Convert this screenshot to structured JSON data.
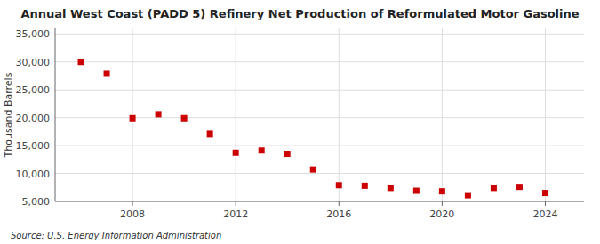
{
  "chart_data": {
    "type": "scatter",
    "title": "Annual West Coast (PADD 5) Refinery Net Production of Reformulated Motor Gasoline",
    "y_label": "Thousand Barrels",
    "annotations": [
      "Source: U.S. Energy Information Administration"
    ],
    "x": [
      2006,
      2007,
      2008,
      2009,
      2010,
      2011,
      2012,
      2013,
      2014,
      2015,
      2016,
      2017,
      2018,
      2019,
      2020,
      2021,
      2022,
      2023,
      2024
    ],
    "values": [
      30000,
      27900,
      19900,
      20600,
      19900,
      17100,
      13700,
      14100,
      13500,
      10700,
      7900,
      7800,
      7400,
      6900,
      6800,
      6100,
      7400,
      7600,
      6500
    ],
    "color": "#cc0000",
    "marker": "square",
    "xlim": [
      2005,
      2025.5
    ],
    "xticks": [
      2008,
      2012,
      2016,
      2020,
      2024
    ],
    "ylim": [
      5000,
      36000
    ],
    "yticks": [
      {
        "value": 5000,
        "label": "5,000"
      },
      {
        "value": 10000,
        "label": "10,000"
      },
      {
        "value": 15000,
        "label": "15,000"
      },
      {
        "value": 20000,
        "label": "20,000"
      },
      {
        "value": 25000,
        "label": "25,000"
      },
      {
        "value": 30000,
        "label": "30,000"
      },
      {
        "value": 35000,
        "label": "35,000"
      }
    ],
    "grid": true
  }
}
